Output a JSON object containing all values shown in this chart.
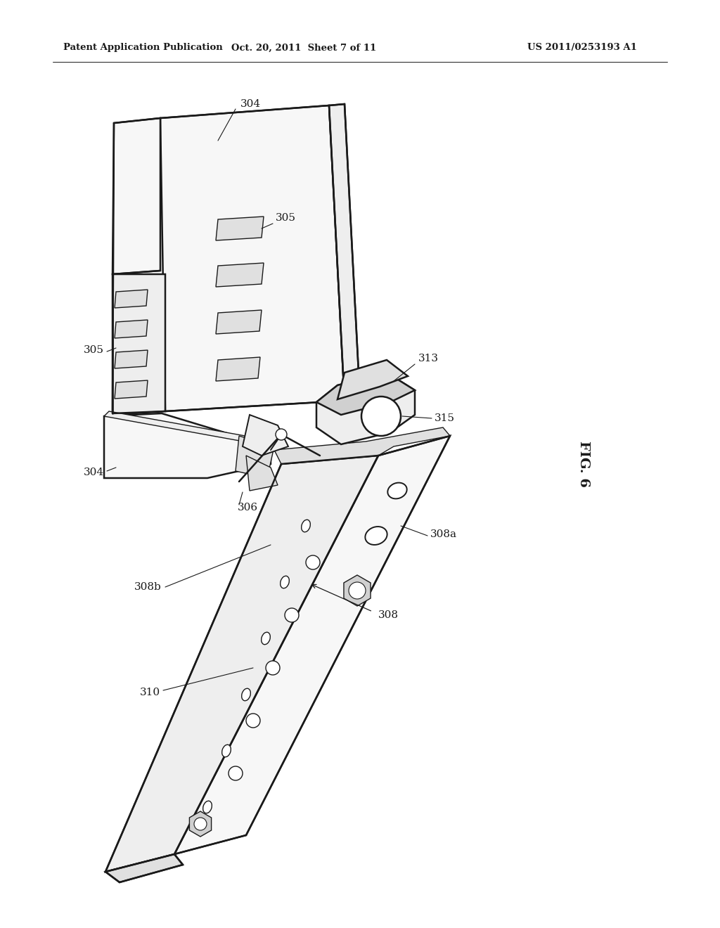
{
  "bg_color": "#ffffff",
  "line_color": "#1a1a1a",
  "text_color": "#1a1a1a",
  "header_left": "Patent Application Publication",
  "header_mid": "Oct. 20, 2011  Sheet 7 of 11",
  "header_right": "US 2011/0253193 A1",
  "fig_label": "FIG. 6",
  "lw_main": 1.8,
  "lw_thin": 1.0,
  "lw_med": 1.4,
  "face_light": "#f7f7f7",
  "face_mid": "#eeeeee",
  "face_dark": "#e0e0e0",
  "face_darker": "#d0d0d0"
}
